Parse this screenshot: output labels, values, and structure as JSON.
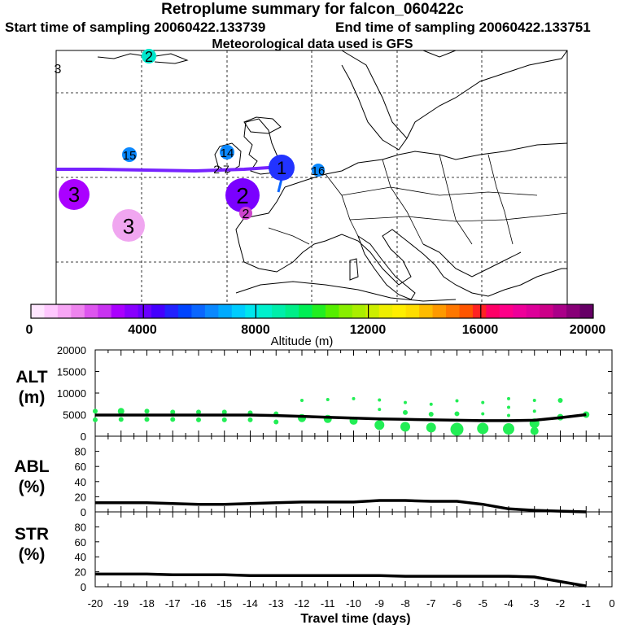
{
  "header": {
    "title": "Retroplume summary for falcon_060422c",
    "start_text": "Start time of sampling 20060422.133739",
    "end_text": "End time of sampling 20060422.133751",
    "met_text": "Meteorological data used is GFS"
  },
  "colorbar": {
    "label": "Altitude (m)",
    "ticks": [
      "0",
      "4000",
      "8000",
      "12000",
      "16000",
      "20000"
    ],
    "colors": [
      "#ffe6ff",
      "#ffc8ff",
      "#f7a6f5",
      "#ee84ee",
      "#dd55ee",
      "#c833f0",
      "#aa00ff",
      "#8800ff",
      "#6a00ff",
      "#4400ff",
      "#2222ff",
      "#0044ff",
      "#0a66ff",
      "#0a88ff",
      "#00aaff",
      "#00ccff",
      "#00e6ee",
      "#00f0cc",
      "#00eeaa",
      "#00ee88",
      "#00ee55",
      "#22ee22",
      "#55ee00",
      "#88ee00",
      "#aaee00",
      "#ccee00",
      "#eeee00",
      "#ffee00",
      "#ffdd00",
      "#ffbb00",
      "#ff9900",
      "#ff7700",
      "#ff5500",
      "#ff2222",
      "#ff0066",
      "#ff0088",
      "#ee0099",
      "#dd0099",
      "#cc0088",
      "#aa0088",
      "#880077",
      "#660066"
    ],
    "markers": [
      0.2,
      0.4,
      0.6,
      0.8
    ]
  },
  "map": {
    "labels": [
      {
        "text": "2",
        "color": "#00e6cc",
        "size": "small"
      },
      {
        "text": "3",
        "color": "#00e6cc",
        "size": "small"
      },
      {
        "text": "15",
        "color": "#0a88ff",
        "size": "small"
      },
      {
        "text": "14",
        "color": "#0a88ff",
        "size": "small"
      },
      {
        "text": "3",
        "color": "#aa00ff",
        "size": "large"
      },
      {
        "text": "3",
        "color": "#f0a6f0",
        "size": "large"
      },
      {
        "text": "2",
        "color": "#7a00ff",
        "size": "large"
      },
      {
        "text": "2",
        "color": "#cc44cc",
        "size": "small"
      },
      {
        "text": "1",
        "color": "#2233ff",
        "size": "large"
      },
      {
        "text": "16",
        "color": "#0a88ff",
        "size": "small"
      }
    ]
  },
  "chart_data": [
    {
      "type": "scatter",
      "panel": "ALT",
      "ylabel": "ALT\n(m)",
      "ylim": [
        0,
        20000
      ],
      "yticks": [
        0,
        5000,
        10000,
        15000,
        20000
      ],
      "xlim": [
        -20,
        0
      ],
      "line": {
        "x": [
          -20,
          -19,
          -18,
          -17,
          -16,
          -15,
          -14,
          -13,
          -12,
          -11,
          -10,
          -9,
          -8,
          -7,
          -6,
          -5,
          -4,
          -3,
          -2,
          -1
        ],
        "y": [
          4900,
          4900,
          4900,
          4900,
          4900,
          4900,
          4900,
          4800,
          4600,
          4400,
          4200,
          4000,
          3900,
          3800,
          3700,
          3600,
          3600,
          3700,
          4300,
          5000
        ]
      },
      "points": [
        {
          "x": -20,
          "y": 5800,
          "r": 3
        },
        {
          "x": -20,
          "y": 3800,
          "r": 3
        },
        {
          "x": -19,
          "y": 5800,
          "r": 4
        },
        {
          "x": -19,
          "y": 3900,
          "r": 3
        },
        {
          "x": -18,
          "y": 5800,
          "r": 3
        },
        {
          "x": -18,
          "y": 3900,
          "r": 3
        },
        {
          "x": -17,
          "y": 5600,
          "r": 3
        },
        {
          "x": -17,
          "y": 3900,
          "r": 3
        },
        {
          "x": -16,
          "y": 5600,
          "r": 3
        },
        {
          "x": -16,
          "y": 3800,
          "r": 3
        },
        {
          "x": -15,
          "y": 5600,
          "r": 3
        },
        {
          "x": -15,
          "y": 3800,
          "r": 3
        },
        {
          "x": -14,
          "y": 5400,
          "r": 3
        },
        {
          "x": -14,
          "y": 3800,
          "r": 3
        },
        {
          "x": -13,
          "y": 5200,
          "r": 3
        },
        {
          "x": -13,
          "y": 3300,
          "r": 3
        },
        {
          "x": -12,
          "y": 8300,
          "r": 2
        },
        {
          "x": -12,
          "y": 4200,
          "r": 5
        },
        {
          "x": -11,
          "y": 8500,
          "r": 2
        },
        {
          "x": -11,
          "y": 4000,
          "r": 5
        },
        {
          "x": -10,
          "y": 8700,
          "r": 2
        },
        {
          "x": -10,
          "y": 3600,
          "r": 5
        },
        {
          "x": -9,
          "y": 8400,
          "r": 2
        },
        {
          "x": -9,
          "y": 6200,
          "r": 2
        },
        {
          "x": -9,
          "y": 2600,
          "r": 6
        },
        {
          "x": -8,
          "y": 7800,
          "r": 2
        },
        {
          "x": -8,
          "y": 5500,
          "r": 3
        },
        {
          "x": -8,
          "y": 2200,
          "r": 6
        },
        {
          "x": -7,
          "y": 7400,
          "r": 2
        },
        {
          "x": -7,
          "y": 5100,
          "r": 3
        },
        {
          "x": -7,
          "y": 2000,
          "r": 6
        },
        {
          "x": -6,
          "y": 8200,
          "r": 2
        },
        {
          "x": -6,
          "y": 5200,
          "r": 3
        },
        {
          "x": -6,
          "y": 1600,
          "r": 8
        },
        {
          "x": -5,
          "y": 7800,
          "r": 2
        },
        {
          "x": -5,
          "y": 5200,
          "r": 2
        },
        {
          "x": -5,
          "y": 1800,
          "r": 7
        },
        {
          "x": -4,
          "y": 8700,
          "r": 2
        },
        {
          "x": -4,
          "y": 6700,
          "r": 2
        },
        {
          "x": -4,
          "y": 4800,
          "r": 2
        },
        {
          "x": -4,
          "y": 1700,
          "r": 7
        },
        {
          "x": -3,
          "y": 8300,
          "r": 2
        },
        {
          "x": -3,
          "y": 5800,
          "r": 2
        },
        {
          "x": -3,
          "y": 3000,
          "r": 6
        },
        {
          "x": -3,
          "y": 1200,
          "r": 5
        },
        {
          "x": -2,
          "y": 8300,
          "r": 3
        },
        {
          "x": -2,
          "y": 4400,
          "r": 4
        },
        {
          "x": -1,
          "y": 5000,
          "r": 4
        }
      ]
    },
    {
      "type": "line",
      "panel": "ABL",
      "ylabel": "ABL\n(%)",
      "ylim": [
        0,
        100
      ],
      "yticks": [
        0,
        20,
        40,
        60,
        80
      ],
      "xlim": [
        -20,
        0
      ],
      "x": [
        -20,
        -19,
        -18,
        -17,
        -16,
        -15,
        -14,
        -13,
        -12,
        -11,
        -10,
        -9,
        -8,
        -7,
        -6,
        -5,
        -4,
        -3,
        -2,
        -1
      ],
      "y": [
        12,
        12,
        12,
        11,
        10,
        10,
        11,
        12,
        13,
        13,
        13,
        15,
        15,
        14,
        14,
        10,
        4,
        2,
        1,
        0
      ]
    },
    {
      "type": "line",
      "panel": "STR",
      "ylabel": "STR\n(%)",
      "ylim": [
        0,
        100
      ],
      "yticks": [
        0,
        20,
        40,
        60,
        80
      ],
      "xlim": [
        -20,
        0
      ],
      "x": [
        -20,
        -19,
        -18,
        -17,
        -16,
        -15,
        -14,
        -13,
        -12,
        -11,
        -10,
        -9,
        -8,
        -7,
        -6,
        -5,
        -4,
        -3,
        -2,
        -1
      ],
      "y": [
        17,
        17,
        17,
        16,
        16,
        16,
        15,
        15,
        15,
        15,
        15,
        15,
        14,
        14,
        14,
        14,
        14,
        13,
        7,
        1
      ],
      "xlabel": "Travel time (days)",
      "xticks": [
        "-20",
        "-19",
        "-18",
        "-17",
        "-16",
        "-15",
        "-14",
        "-13",
        "-12",
        "-11",
        "-10",
        "-9",
        "-8",
        "-7",
        "-6",
        "-5",
        "-4",
        "-3",
        "-2",
        "-1",
        "0"
      ]
    }
  ]
}
